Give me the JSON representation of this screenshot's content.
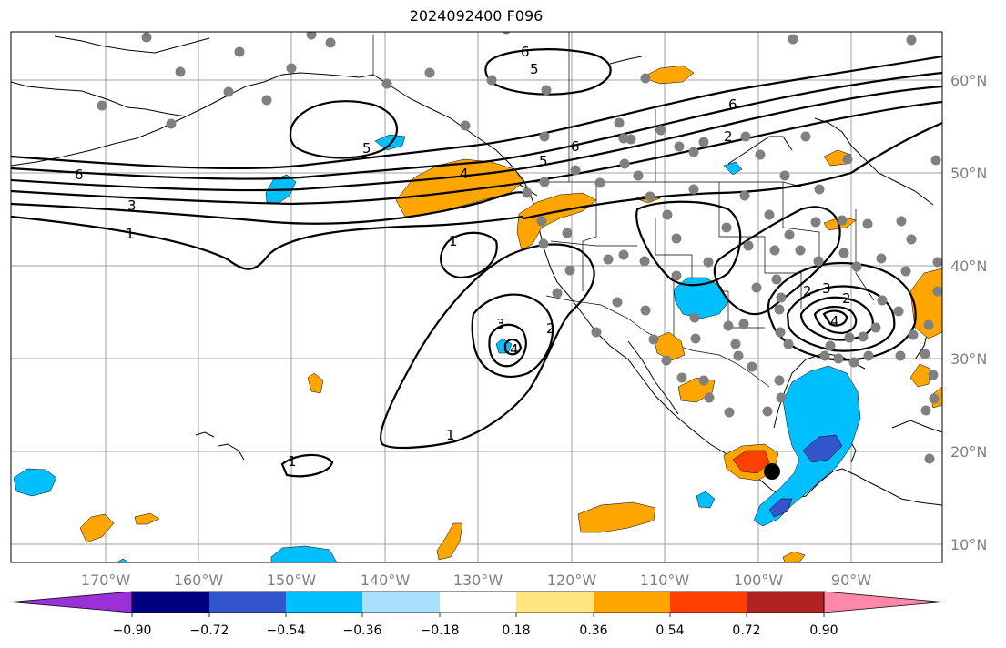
{
  "title": "2024092400 F096",
  "lon_labels": [
    "170°W",
    "160°W",
    "150°W",
    "140°W",
    "130°W",
    "120°W",
    "110°W",
    "100°W",
    "90°W"
  ],
  "lat_labels": [
    "60°N",
    "50°N",
    "40°N",
    "30°N",
    "20°N",
    "10°N"
  ],
  "colorbar": {
    "ticks": [
      "−0.90",
      "−0.72",
      "−0.54",
      "−0.36",
      "−0.18",
      "0.18",
      "0.36",
      "0.54",
      "0.72",
      "0.90"
    ],
    "colors": [
      "#9b30d9",
      "#000080",
      "#3355cc",
      "#00bfff",
      "#aadfff",
      "#ffffff",
      "#ffe680",
      "#ffa500",
      "#ff4000",
      "#b22222",
      "#ff88aa"
    ]
  },
  "contour_labels": [
    "6",
    "5",
    "6",
    "5",
    "5",
    "4",
    "6",
    "2",
    "6",
    "3",
    "1",
    "1",
    "3",
    "2",
    "4",
    "1",
    "1",
    "2",
    "3",
    "2",
    "4"
  ],
  "colors": {
    "contour": "#000000",
    "grid": "#a0a0a0",
    "station": "#808080",
    "marker": "#000000"
  }
}
